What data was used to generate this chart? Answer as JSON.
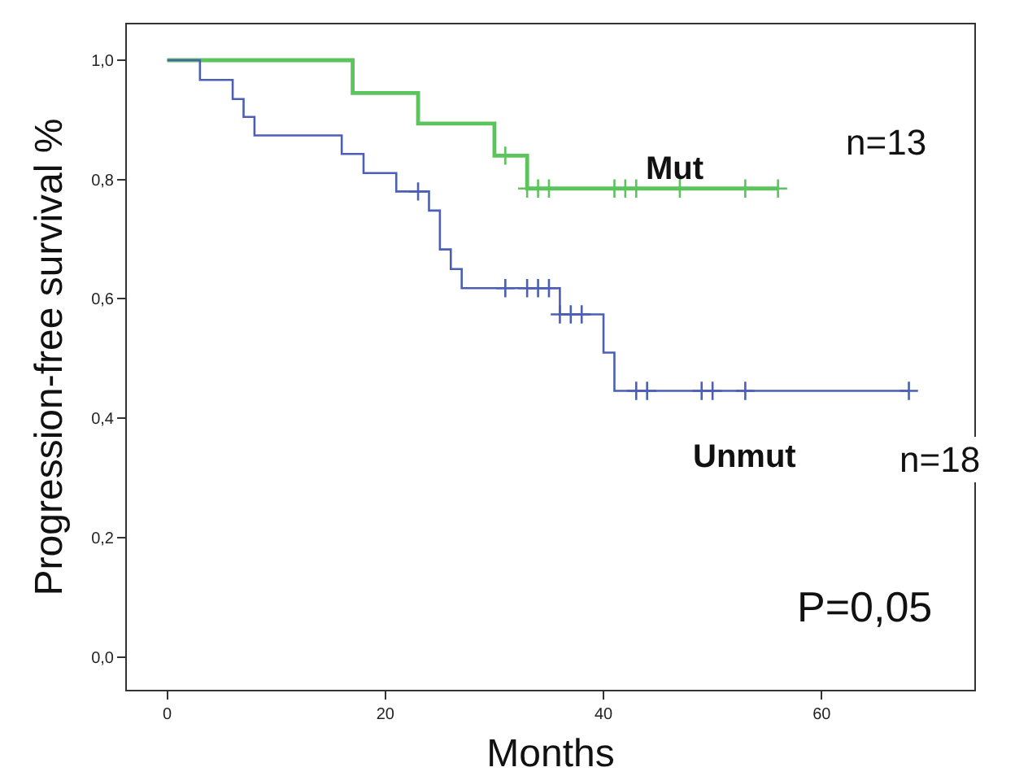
{
  "chart_data": {
    "type": "step",
    "xlabel": "Months",
    "ylabel": "Progression-free survival %",
    "xlim": [
      -3.7,
      74
    ],
    "ylim": [
      -0.055,
      1.06
    ],
    "xticks": [
      0,
      20,
      40,
      60
    ],
    "yticks": [
      {
        "value": 0,
        "label": "0,0"
      },
      {
        "value": 0.2,
        "label": "0,2"
      },
      {
        "value": 0.4,
        "label": "0,4"
      },
      {
        "value": 0.6,
        "label": "0,6"
      },
      {
        "value": 0.8,
        "label": "0,8"
      },
      {
        "value": 1,
        "label": "1,0"
      }
    ],
    "line_style": "solid",
    "series": [
      {
        "color": "#5cc45c",
        "x": [
          0,
          17,
          23,
          30,
          33,
          56
        ],
        "values": [
          1,
          0.945,
          0.894,
          0.84,
          0.785,
          0.785
        ]
      },
      {
        "color": "#4a5fb5",
        "x": [
          0,
          3,
          6,
          7,
          8,
          16,
          18,
          21,
          24,
          25,
          26,
          27,
          36,
          40,
          41,
          68
        ],
        "values": [
          1,
          0.967,
          0.935,
          0.905,
          0.874,
          0.843,
          0.811,
          0.78,
          0.748,
          0.683,
          0.65,
          0.618,
          0.574,
          0.51,
          0.446,
          0.446
        ]
      },
      {
        "type": "scatter",
        "marker": "cross",
        "color": "#5cc45c",
        "x": [
          31,
          33,
          34,
          35,
          41,
          42,
          43,
          47,
          53,
          56
        ],
        "values": [
          0.84,
          0.785,
          0.785,
          0.785,
          0.785,
          0.785,
          0.785,
          0.785,
          0.785,
          0.785
        ]
      },
      {
        "type": "scatter",
        "marker": "cross",
        "color": "#4a5fb5",
        "x": [
          23,
          31,
          33,
          34,
          35,
          36,
          37,
          38,
          43,
          44,
          49,
          50,
          53,
          68
        ],
        "values": [
          0.78,
          0.618,
          0.618,
          0.618,
          0.618,
          0.574,
          0.574,
          0.574,
          0.446,
          0.446,
          0.446,
          0.446,
          0.446,
          0.446
        ]
      }
    ],
    "annotations": [
      "Mut",
      "Unmut",
      "n=13",
      "n=18",
      "P=0,05"
    ]
  }
}
